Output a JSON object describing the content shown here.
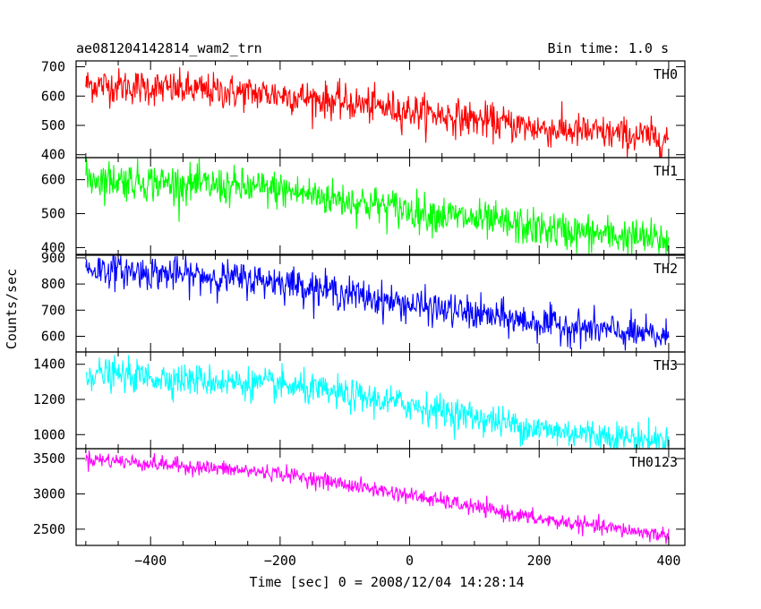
{
  "header": {
    "title": "ae081204142814_wam2_trn",
    "bin_time": "Bin time: 1.0 s"
  },
  "chart_data": {
    "type": "line",
    "xlabel": "Time [sec] 0 = 2008/12/04 14:28:14",
    "ylabel": "Counts/sec",
    "xlim": [
      -515,
      425
    ],
    "xticks": [
      -400,
      -200,
      0,
      200,
      400
    ],
    "x_range": [
      -500,
      400
    ],
    "bin_seconds": 1.0,
    "grid": false,
    "panels": [
      {
        "name": "TH0",
        "color": "#ff0000",
        "ylim": [
          390,
          720
        ],
        "yticks": [
          400,
          500,
          600,
          700
        ],
        "trend": [
          [
            -500,
            640
          ],
          [
            -200,
            605
          ],
          [
            0,
            550
          ],
          [
            200,
            490
          ],
          [
            400,
            455
          ]
        ],
        "noise": 30
      },
      {
        "name": "TH1",
        "color": "#00ff00",
        "ylim": [
          380,
          665
        ],
        "yticks": [
          400,
          500,
          600
        ],
        "trend": [
          [
            -500,
            605
          ],
          [
            -200,
            570
          ],
          [
            0,
            510
          ],
          [
            200,
            455
          ],
          [
            400,
            420
          ]
        ],
        "noise": 28
      },
      {
        "name": "TH2",
        "color": "#0000ff",
        "ylim": [
          540,
          910
        ],
        "yticks": [
          600,
          700,
          800,
          900
        ],
        "trend": [
          [
            -500,
            860
          ],
          [
            -200,
            810
          ],
          [
            0,
            720
          ],
          [
            200,
            650
          ],
          [
            400,
            595
          ]
        ],
        "noise": 32
      },
      {
        "name": "TH3",
        "color": "#00ffff",
        "ylim": [
          920,
          1470
        ],
        "yticks": [
          1000,
          1200,
          1400
        ],
        "trend": [
          [
            -500,
            1350
          ],
          [
            -200,
            1280
          ],
          [
            0,
            1170
          ],
          [
            200,
            1030
          ],
          [
            400,
            960
          ]
        ],
        "noise": 45
      },
      {
        "name": "TH0123",
        "color": "#ff00ff",
        "ylim": [
          2270,
          3640
        ],
        "yticks": [
          2500,
          3000,
          3500
        ],
        "trend": [
          [
            -500,
            3500
          ],
          [
            -200,
            3290
          ],
          [
            0,
            2980
          ],
          [
            200,
            2640
          ],
          [
            400,
            2410
          ]
        ],
        "noise": 55
      }
    ]
  }
}
